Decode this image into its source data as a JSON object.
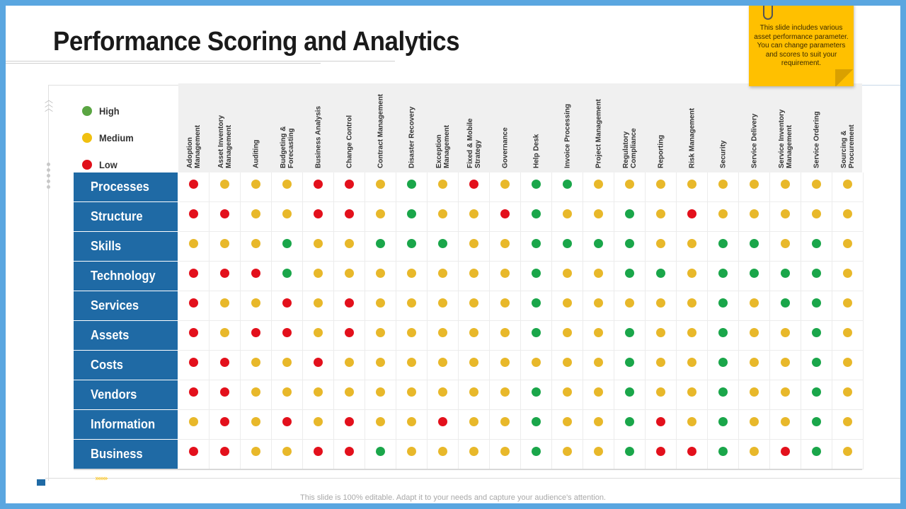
{
  "title": "Performance Scoring and Analytics",
  "note": "This slide includes various asset performance parameter. You can change parameters and scores to suit your requirement.",
  "footer": "This slide is 100% editable. Adapt it to your needs and capture your audience's attention.",
  "legend": [
    {
      "label": "High",
      "color": "#5aa542"
    },
    {
      "label": "Medium",
      "color": "#f0c010"
    },
    {
      "label": "Low",
      "color": "#e0101a"
    }
  ],
  "colors": {
    "H": "#1aa64a",
    "M": "#e8b82a",
    "L": "#e3101c"
  },
  "columns": [
    "Adoption\nManagement",
    "Asset Inventory\nManagement",
    "Auditing",
    "Budgeting &\nForecasting",
    "Business Analysis",
    "Change Control",
    "Contract Management",
    "Disaster Recovery",
    "Exception\nManagement",
    "Fixed & Mobile\nStrategy",
    "Governance",
    "Help Desk",
    "Invoice Processing",
    "Project Management",
    "Regulatory\nCompliance",
    "Reporting",
    "Risk Management",
    "Security",
    "Service Delivery",
    "Service Inventory\nManagement",
    "Service Ordering",
    "Sourcing &\nProcurement"
  ],
  "rows": [
    {
      "label": "Processes",
      "scores": "LMMMLLMHMLMHHMMMMMMMMM"
    },
    {
      "label": "Structure",
      "scores": "LLMMLLMHMMLHMMHMLMMMMM"
    },
    {
      "label": "Skills",
      "scores": "MMMHMMHHHMMHHHHMMHHMHM"
    },
    {
      "label": "Technology",
      "scores": "LLLHMMMMMMMHMMHHMHHHHM"
    },
    {
      "label": "Services",
      "scores": "LMMLMLMMMMMHMMMMMHMHHM"
    },
    {
      "label": "Assets",
      "scores": "LMLLMLMMMMMHMMHMMHMMHM"
    },
    {
      "label": "Costs",
      "scores": "LLMMLMMMMMMMMMHMMHMMHM"
    },
    {
      "label": "Vendors",
      "scores": "LLMMMMMMMMMHMMHMMHMMHM"
    },
    {
      "label": "Information",
      "scores": "MLMLMLMMLMMHMMHLMHMMHM"
    },
    {
      "label": "Business",
      "scores": "LLMMLLHMMMMHMMHLLHMLHM"
    }
  ]
}
